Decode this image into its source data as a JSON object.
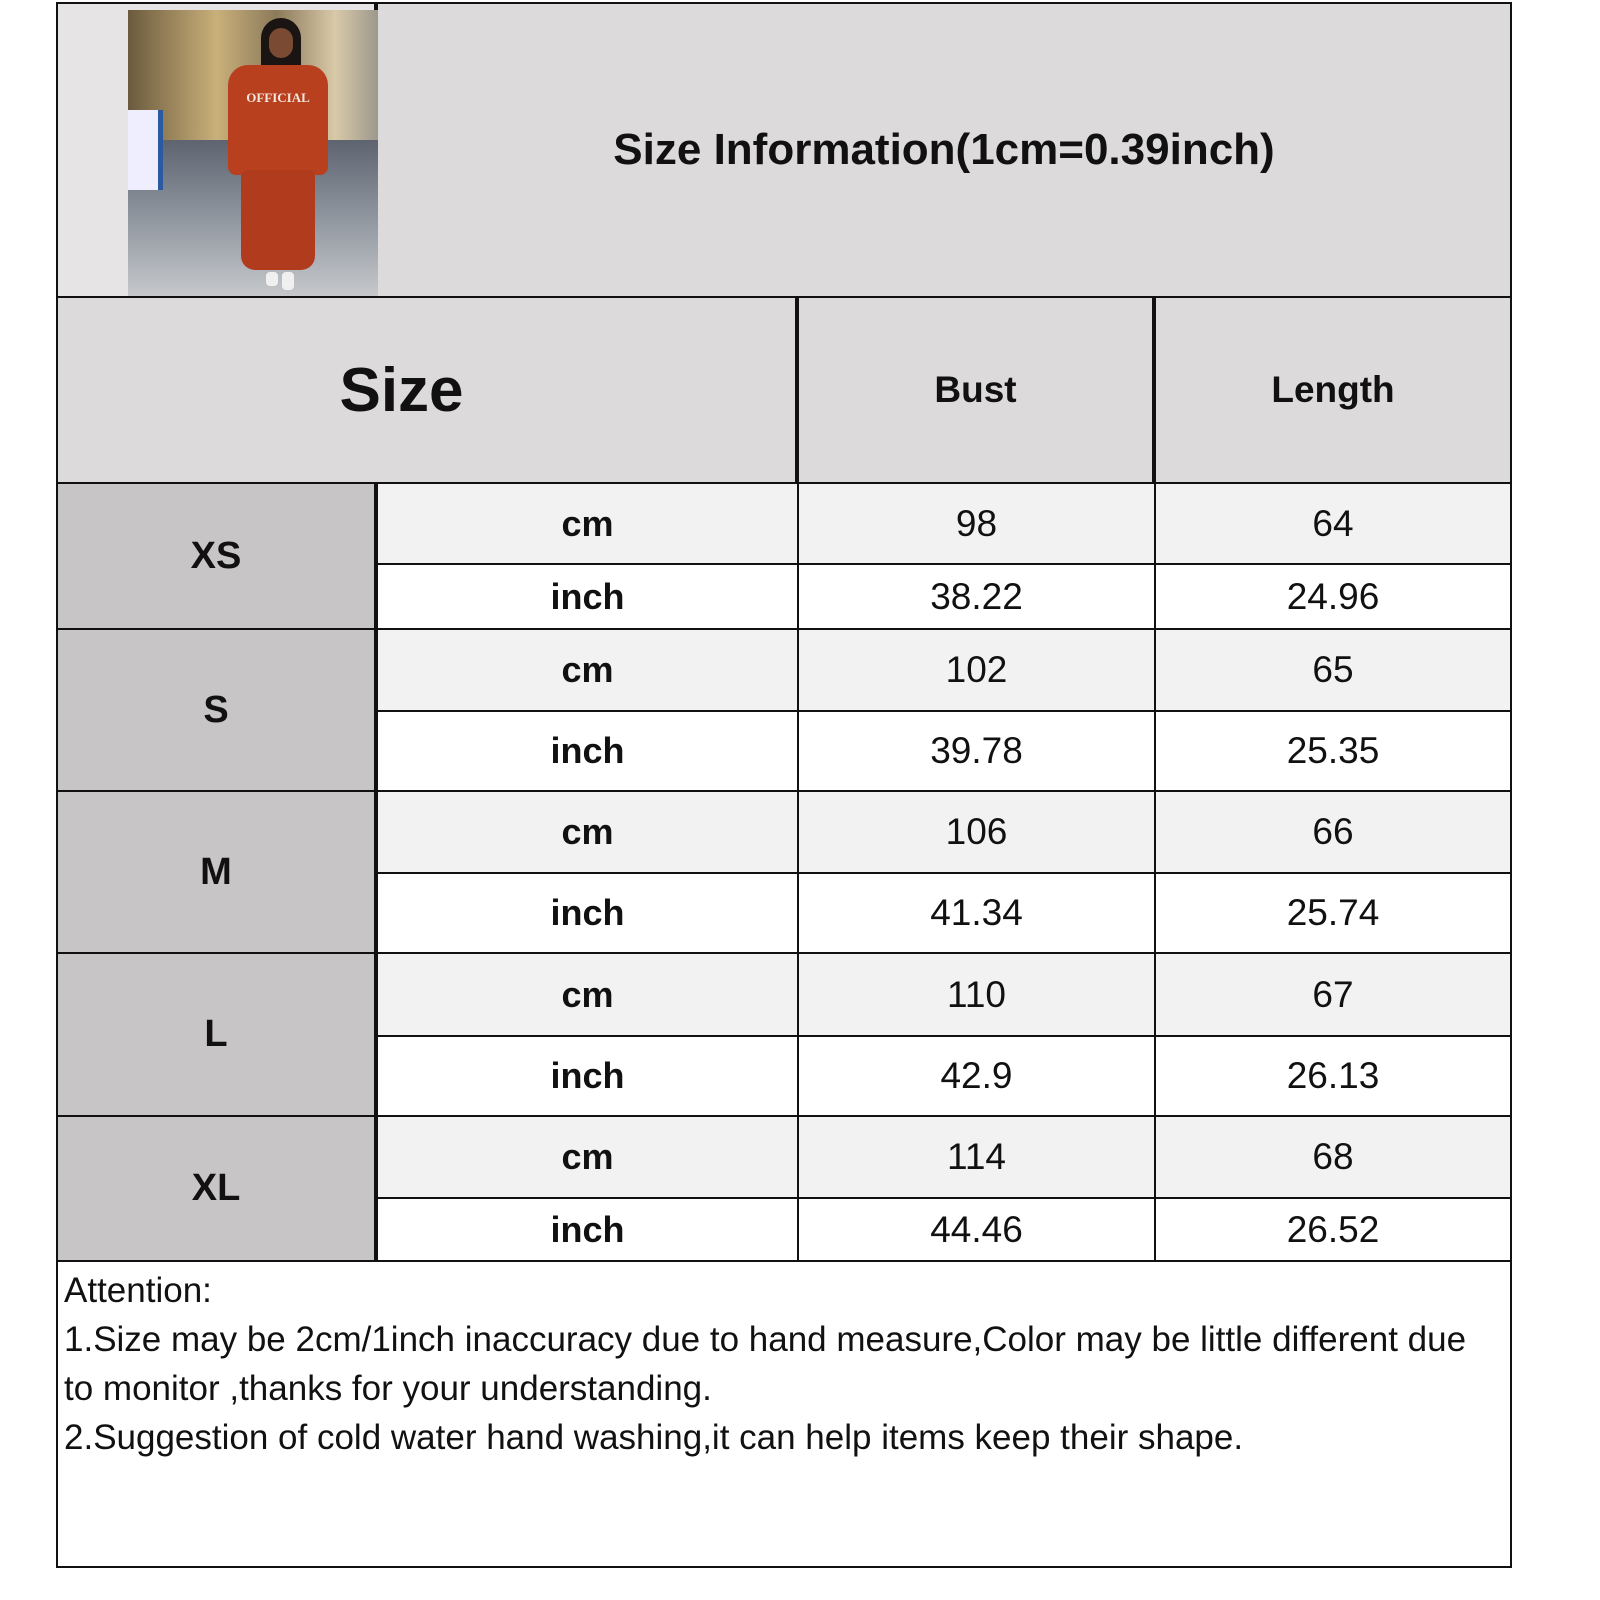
{
  "header": {
    "title": "Size Information(1cm=0.39inch)",
    "photo": {
      "subject": "model wearing orange sweatshirt and joggers",
      "print_text": "OFFICIAL"
    }
  },
  "table": {
    "size_header": "Size",
    "columns": [
      "Bust",
      "Length"
    ],
    "rows": [
      {
        "size": "XS",
        "cm_label": "cm",
        "inch_label": "inch",
        "cm": [
          "98",
          "64"
        ],
        "inch": [
          "38.22",
          "24.96"
        ]
      },
      {
        "size": "S",
        "cm_label": "cm",
        "inch_label": "inch",
        "cm": [
          "102",
          "65"
        ],
        "inch": [
          "39.78",
          "25.35"
        ]
      },
      {
        "size": "M",
        "cm_label": "cm",
        "inch_label": "inch",
        "cm": [
          "106",
          "66"
        ],
        "inch": [
          "41.34",
          "25.74"
        ]
      },
      {
        "size": "L",
        "cm_label": "cm",
        "inch_label": "inch",
        "cm": [
          "110",
          "67"
        ],
        "inch": [
          "42.9",
          "26.13"
        ]
      },
      {
        "size": "XL",
        "cm_label": "cm",
        "inch_label": "inch",
        "cm": [
          "114",
          "68"
        ],
        "inch": [
          "44.46",
          "26.52"
        ]
      }
    ]
  },
  "notes": {
    "heading": "Attention:",
    "lines": [
      "1.Size may be 2cm/1inch inaccuracy due to hand measure,Color may be little different due to monitor ,thanks for your understanding.",
      "2.Suggestion of cold water hand washing,it can help items keep their shape."
    ]
  },
  "colors": {
    "header_bg": "#dcdadb",
    "size_label_bg": "#c8c5c6",
    "cm_row_bg": "#f2f2f2",
    "inch_row_bg": "#ffffff",
    "garment": "#b8401f"
  }
}
